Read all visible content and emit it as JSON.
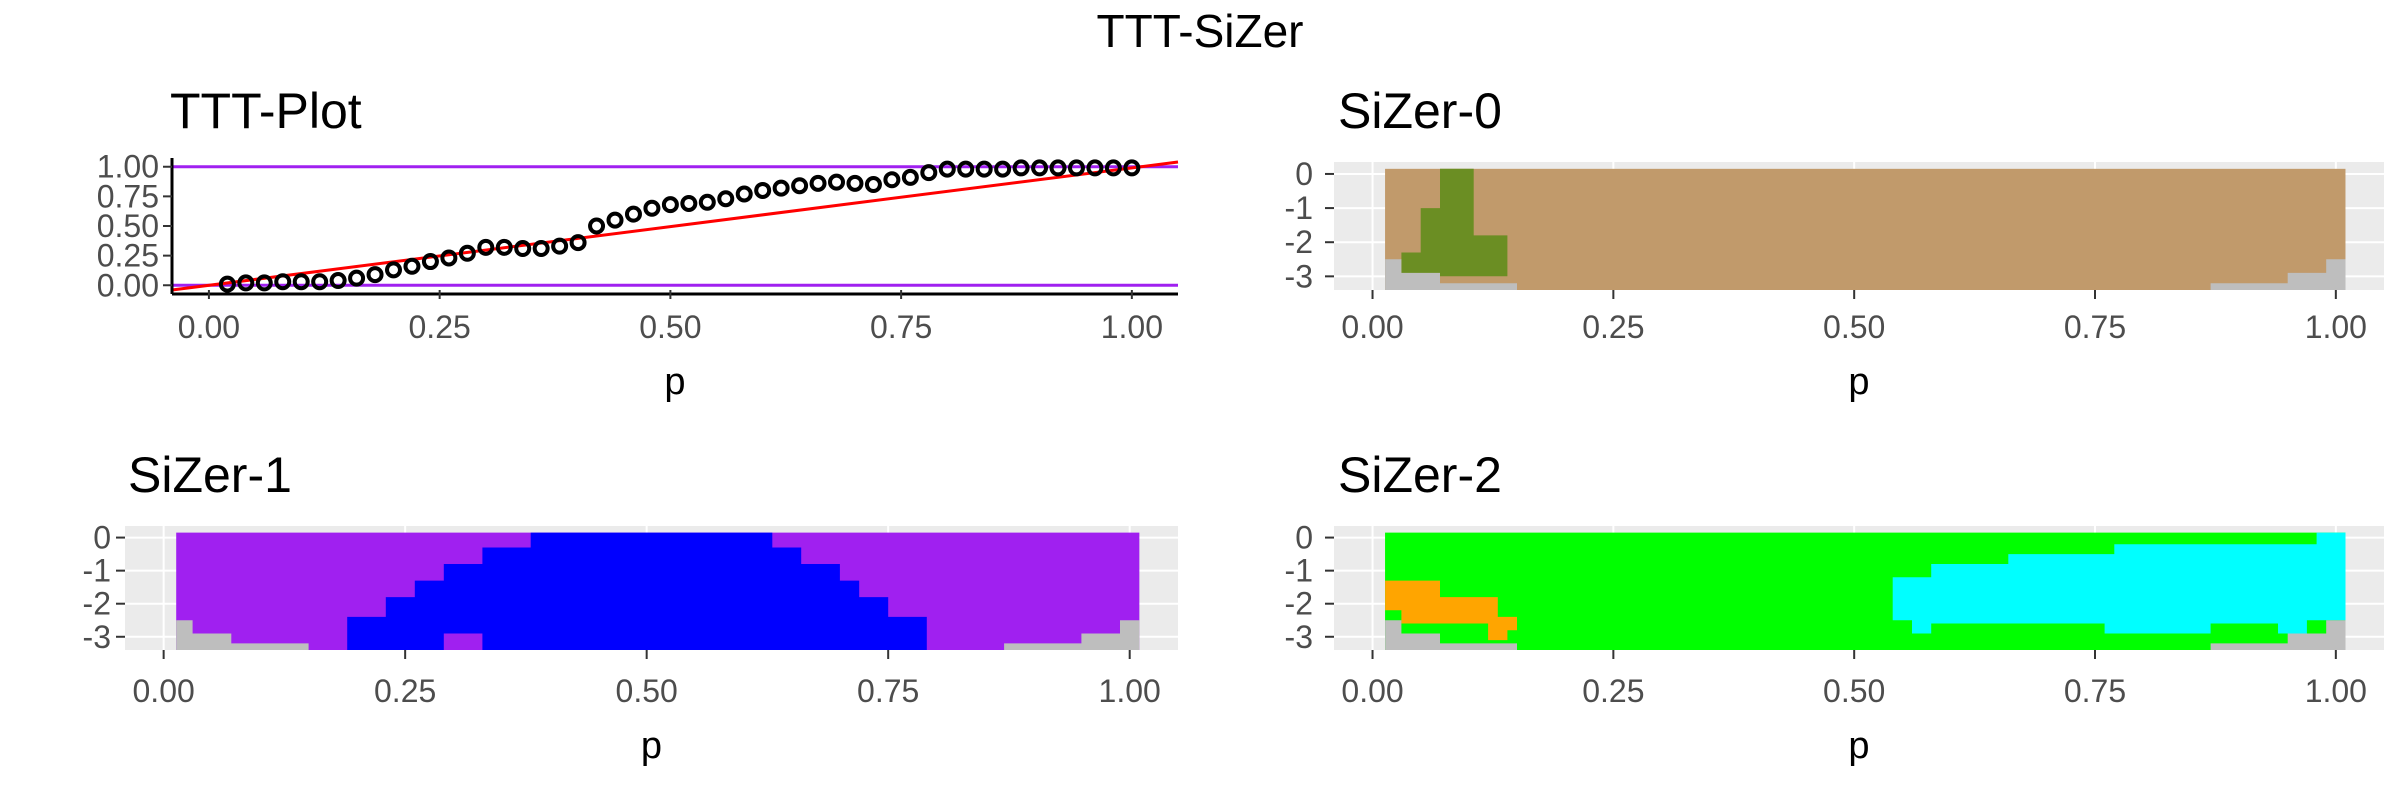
{
  "title": "TTT-SiZer",
  "colors": {
    "panel_bg": "#ebebeb",
    "grid_major": "#ffffff",
    "grid_minor": "#f5f5f5",
    "tick_text": "#4d4d4d",
    "ttt_points": "#000000",
    "ttt_reference": "#ff0000",
    "ttt_bounds": "#a020f0",
    "ttt_axis": "#000000",
    "sizer_brown": "#c19a6b",
    "sizer_olive": "#6b8e23",
    "sizer_gray": "#bebebe",
    "sizer_purple": "#a020f0",
    "sizer_blue": "#0000ff",
    "sizer_green": "#00ff00",
    "sizer_orange": "#ffa500",
    "sizer_cyan": "#00ffff"
  },
  "chart_data": [
    {
      "id": "ttt",
      "type": "scatter",
      "title": "TTT-Plot",
      "xlabel": "p",
      "ylabel": "",
      "xlim": [
        -0.04,
        1.05
      ],
      "ylim": [
        -0.04,
        1.04
      ],
      "xticks": [
        "0.00",
        "0.25",
        "0.50",
        "0.75",
        "1.00"
      ],
      "yticks": [
        "0.00",
        "0.25",
        "0.50",
        "0.75",
        "1.00"
      ],
      "grid": false,
      "series": [
        {
          "kind": "points",
          "x": [
            0.02,
            0.04,
            0.06,
            0.08,
            0.1,
            0.12,
            0.14,
            0.16,
            0.18,
            0.2,
            0.22,
            0.24,
            0.26,
            0.28,
            0.3,
            0.32,
            0.34,
            0.36,
            0.38,
            0.4,
            0.42,
            0.44,
            0.46,
            0.48,
            0.5,
            0.52,
            0.54,
            0.56,
            0.58,
            0.6,
            0.62,
            0.64,
            0.66,
            0.68,
            0.7,
            0.72,
            0.74,
            0.76,
            0.78,
            0.8,
            0.82,
            0.84,
            0.86,
            0.88,
            0.9,
            0.92,
            0.94,
            0.96,
            0.98,
            1.0
          ],
          "y": [
            0.01,
            0.02,
            0.02,
            0.03,
            0.03,
            0.03,
            0.04,
            0.06,
            0.09,
            0.13,
            0.16,
            0.2,
            0.23,
            0.27,
            0.32,
            0.32,
            0.31,
            0.31,
            0.33,
            0.36,
            0.5,
            0.55,
            0.6,
            0.65,
            0.68,
            0.69,
            0.7,
            0.73,
            0.77,
            0.8,
            0.82,
            0.84,
            0.86,
            0.87,
            0.86,
            0.85,
            0.89,
            0.91,
            0.95,
            0.98,
            0.98,
            0.98,
            0.98,
            0.99,
            0.99,
            0.99,
            0.99,
            0.99,
            0.99,
            0.99
          ]
        },
        {
          "kind": "reference-line",
          "x": [
            -0.04,
            1.05
          ],
          "y": [
            -0.04,
            1.05
          ]
        },
        {
          "kind": "bound-lines",
          "y": [
            0,
            1
          ]
        }
      ]
    },
    {
      "id": "sizer0",
      "type": "heatmap",
      "title": "SiZer-0",
      "xlabel": "p",
      "xlim": [
        -0.04,
        1.05
      ],
      "ylim": [
        -3.4,
        0.35
      ],
      "xticks": [
        "0.00",
        "0.25",
        "0.50",
        "0.75",
        "1.00"
      ],
      "yticks": [
        "0",
        "-1",
        "-2",
        "-3"
      ],
      "background_color": "sizer_brown",
      "regions": [
        {
          "color": "sizer_olive",
          "points": [
            [
              0.07,
              0.15
            ],
            [
              0.105,
              0.15
            ],
            [
              0.105,
              -1.8
            ],
            [
              0.14,
              -1.8
            ],
            [
              0.14,
              -3.0
            ],
            [
              0.03,
              -3.0
            ],
            [
              0.03,
              -2.3
            ],
            [
              0.05,
              -2.3
            ],
            [
              0.05,
              -1.0
            ],
            [
              0.07,
              -1.0
            ]
          ]
        },
        {
          "color": "sizer_gray",
          "points": [
            [
              0.013,
              -2.5
            ],
            [
              0.03,
              -2.5
            ],
            [
              0.03,
              -2.9
            ],
            [
              0.07,
              -2.9
            ],
            [
              0.07,
              -3.2
            ],
            [
              0.15,
              -3.2
            ],
            [
              0.15,
              -3.5
            ],
            [
              0.013,
              -3.5
            ]
          ]
        },
        {
          "color": "sizer_gray",
          "points": [
            [
              0.87,
              -3.5
            ],
            [
              0.87,
              -3.2
            ],
            [
              0.95,
              -3.2
            ],
            [
              0.95,
              -2.9
            ],
            [
              0.99,
              -2.9
            ],
            [
              0.99,
              -2.5
            ],
            [
              1.01,
              -2.5
            ],
            [
              1.01,
              -3.5
            ]
          ]
        }
      ]
    },
    {
      "id": "sizer1",
      "type": "heatmap",
      "title": "SiZer-1",
      "xlabel": "p",
      "xlim": [
        -0.04,
        1.05
      ],
      "ylim": [
        -3.4,
        0.35
      ],
      "xticks": [
        "0.00",
        "0.25",
        "0.50",
        "0.75",
        "1.00"
      ],
      "yticks": [
        "0",
        "-1",
        "-2",
        "-3"
      ],
      "background_color": "sizer_purple",
      "regions": [
        {
          "color": "sizer_blue",
          "points": [
            [
              0.38,
              0.15
            ],
            [
              0.63,
              0.15
            ],
            [
              0.63,
              -0.3
            ],
            [
              0.66,
              -0.3
            ],
            [
              0.66,
              -0.8
            ],
            [
              0.7,
              -0.8
            ],
            [
              0.7,
              -1.3
            ],
            [
              0.72,
              -1.3
            ],
            [
              0.72,
              -1.8
            ],
            [
              0.75,
              -1.8
            ],
            [
              0.75,
              -2.4
            ],
            [
              0.79,
              -2.4
            ],
            [
              0.79,
              -3.5
            ],
            [
              0.19,
              -3.5
            ],
            [
              0.19,
              -2.4
            ],
            [
              0.23,
              -2.4
            ],
            [
              0.23,
              -1.8
            ],
            [
              0.26,
              -1.8
            ],
            [
              0.26,
              -1.3
            ],
            [
              0.29,
              -1.3
            ],
            [
              0.29,
              -0.8
            ],
            [
              0.33,
              -0.8
            ],
            [
              0.33,
              -0.3
            ],
            [
              0.38,
              -0.3
            ]
          ]
        },
        {
          "color": "sizer_purple",
          "points": [
            [
              0.29,
              -3.5
            ],
            [
              0.29,
              -2.9
            ],
            [
              0.33,
              -2.9
            ],
            [
              0.33,
              -3.5
            ]
          ]
        },
        {
          "color": "sizer_gray",
          "points": [
            [
              0.013,
              -2.5
            ],
            [
              0.03,
              -2.5
            ],
            [
              0.03,
              -2.9
            ],
            [
              0.07,
              -2.9
            ],
            [
              0.07,
              -3.2
            ],
            [
              0.15,
              -3.2
            ],
            [
              0.15,
              -3.5
            ],
            [
              0.013,
              -3.5
            ]
          ]
        },
        {
          "color": "sizer_gray",
          "points": [
            [
              0.87,
              -3.5
            ],
            [
              0.87,
              -3.2
            ],
            [
              0.95,
              -3.2
            ],
            [
              0.95,
              -2.9
            ],
            [
              0.99,
              -2.9
            ],
            [
              0.99,
              -2.5
            ],
            [
              1.01,
              -2.5
            ],
            [
              1.01,
              -3.5
            ]
          ]
        }
      ]
    },
    {
      "id": "sizer2",
      "type": "heatmap",
      "title": "SiZer-2",
      "xlabel": "p",
      "xlim": [
        -0.04,
        1.05
      ],
      "ylim": [
        -3.4,
        0.35
      ],
      "xticks": [
        "0.00",
        "0.25",
        "0.50",
        "0.75",
        "1.00"
      ],
      "yticks": [
        "0",
        "-1",
        "-2",
        "-3"
      ],
      "background_color": "sizer_green",
      "regions": [
        {
          "color": "sizer_orange",
          "points": [
            [
              0.013,
              -1.3
            ],
            [
              0.07,
              -1.3
            ],
            [
              0.07,
              -1.8
            ],
            [
              0.13,
              -1.8
            ],
            [
              0.13,
              -2.4
            ],
            [
              0.15,
              -2.4
            ],
            [
              0.15,
              -2.8
            ],
            [
              0.14,
              -2.8
            ],
            [
              0.14,
              -3.1
            ],
            [
              0.12,
              -3.1
            ],
            [
              0.12,
              -2.6
            ],
            [
              0.03,
              -2.6
            ],
            [
              0.03,
              -2.2
            ],
            [
              0.013,
              -2.2
            ]
          ]
        },
        {
          "color": "sizer_cyan",
          "points": [
            [
              1.01,
              0.15
            ],
            [
              1.01,
              -2.5
            ],
            [
              0.97,
              -2.5
            ],
            [
              0.97,
              -2.9
            ],
            [
              0.94,
              -2.9
            ],
            [
              0.94,
              -2.6
            ],
            [
              0.87,
              -2.6
            ],
            [
              0.87,
              -2.9
            ],
            [
              0.76,
              -2.9
            ],
            [
              0.76,
              -2.6
            ],
            [
              0.58,
              -2.6
            ],
            [
              0.58,
              -2.9
            ],
            [
              0.56,
              -2.9
            ],
            [
              0.56,
              -2.5
            ],
            [
              0.54,
              -2.5
            ],
            [
              0.54,
              -1.2
            ],
            [
              0.58,
              -1.2
            ],
            [
              0.58,
              -0.8
            ],
            [
              0.66,
              -0.8
            ],
            [
              0.66,
              -0.5
            ],
            [
              0.77,
              -0.5
            ],
            [
              0.77,
              -0.2
            ],
            [
              0.98,
              -0.2
            ],
            [
              0.98,
              0.15
            ]
          ]
        },
        {
          "color": "sizer_gray",
          "points": [
            [
              0.013,
              -2.5
            ],
            [
              0.03,
              -2.5
            ],
            [
              0.03,
              -2.9
            ],
            [
              0.07,
              -2.9
            ],
            [
              0.07,
              -3.2
            ],
            [
              0.15,
              -3.2
            ],
            [
              0.15,
              -3.5
            ],
            [
              0.013,
              -3.5
            ]
          ]
        },
        {
          "color": "sizer_gray",
          "points": [
            [
              0.87,
              -3.5
            ],
            [
              0.87,
              -3.2
            ],
            [
              0.95,
              -3.2
            ],
            [
              0.95,
              -2.9
            ],
            [
              0.99,
              -2.9
            ],
            [
              0.99,
              -2.5
            ],
            [
              1.01,
              -2.5
            ],
            [
              1.01,
              -3.5
            ]
          ]
        }
      ]
    }
  ]
}
